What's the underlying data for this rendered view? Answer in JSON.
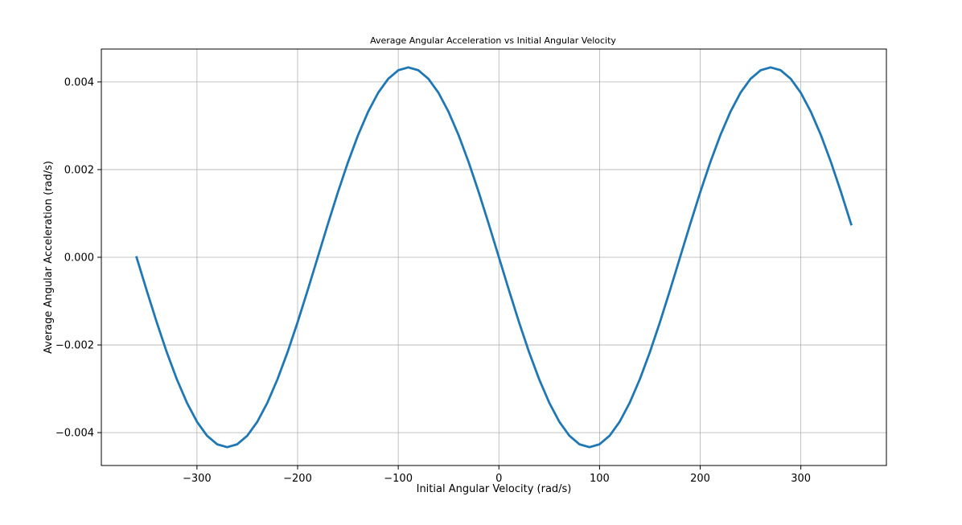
{
  "chart_data": {
    "type": "line",
    "title": "Average Angular Acceleration vs Initial Angular Velocity",
    "xlabel": "Initial Angular Velocity (rad/s)",
    "ylabel": "Average Angular Acceleration (rad/s)",
    "xlim": [
      -395,
      385
    ],
    "ylim": [
      -0.00475,
      0.00475
    ],
    "xticks": [
      -300,
      -200,
      -100,
      0,
      100,
      200,
      300
    ],
    "xtick_labels": [
      "−300",
      "−200",
      "−100",
      "0",
      "100",
      "200",
      "300"
    ],
    "yticks": [
      -0.004,
      -0.002,
      0.0,
      0.002,
      0.004
    ],
    "ytick_labels": [
      "−0.004",
      "−0.002",
      "0.000",
      "0.002",
      "0.004"
    ],
    "grid": true,
    "line_color": "#1f77b4",
    "series": [
      {
        "x": [
          -360,
          -350,
          -340,
          -330,
          -320,
          -310,
          -300,
          -290,
          -280,
          -270,
          -260,
          -250,
          -240,
          -230,
          -220,
          -210,
          -200,
          -190,
          -180,
          -170,
          -160,
          -150,
          -140,
          -130,
          -120,
          -110,
          -100,
          -90,
          -80,
          -70,
          -60,
          -50,
          -40,
          -30,
          -20,
          -10,
          0,
          10,
          20,
          30,
          40,
          50,
          60,
          70,
          80,
          90,
          100,
          110,
          120,
          130,
          140,
          150,
          160,
          170,
          180,
          190,
          200,
          210,
          220,
          230,
          240,
          250,
          260,
          270,
          280,
          290,
          300,
          310,
          320,
          330,
          340,
          350
        ],
        "y": [
          0.0,
          -0.000752,
          -0.001481,
          -0.002165,
          -0.002783,
          -0.003317,
          -0.003751,
          -0.004071,
          -0.004266,
          -0.004332,
          -0.004266,
          -0.004071,
          -0.003751,
          -0.003317,
          -0.002783,
          -0.002165,
          -0.001481,
          -0.000752,
          0.0,
          0.000752,
          0.001481,
          0.002165,
          0.002783,
          0.003317,
          0.003751,
          0.004071,
          0.004266,
          0.004332,
          0.004266,
          0.004071,
          0.003751,
          0.003317,
          0.002783,
          0.002165,
          0.001481,
          0.000752,
          0.0,
          -0.000752,
          -0.001481,
          -0.002165,
          -0.002783,
          -0.003317,
          -0.003751,
          -0.004071,
          -0.004266,
          -0.004332,
          -0.004266,
          -0.004071,
          -0.003751,
          -0.003317,
          -0.002783,
          -0.002165,
          -0.001481,
          -0.000752,
          0.0,
          0.000752,
          0.001481,
          0.002165,
          0.002783,
          0.003317,
          0.003751,
          0.004071,
          0.004266,
          0.004332,
          0.004266,
          0.004071,
          0.003751,
          0.003317,
          0.002783,
          0.002165,
          0.001481,
          0.000752
        ]
      }
    ]
  }
}
